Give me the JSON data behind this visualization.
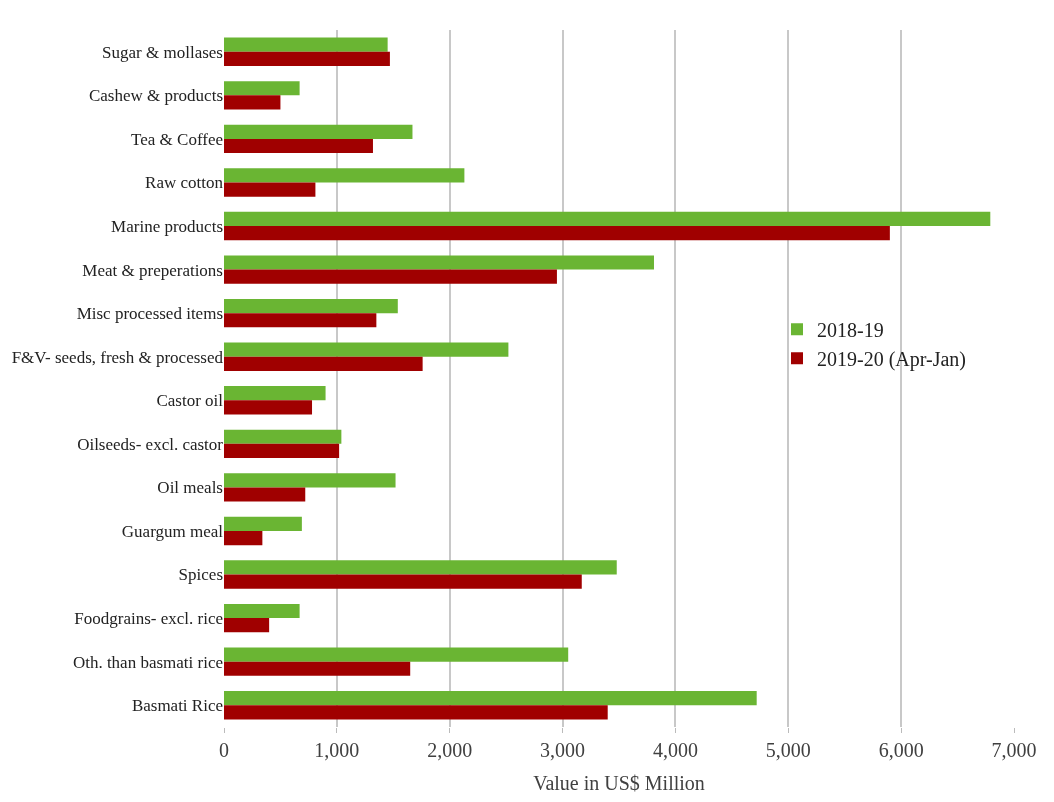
{
  "chart_data": {
    "type": "bar",
    "orientation": "horizontal",
    "xlabel": "Value in US$ Million",
    "categories": [
      "Sugar & mollases",
      "Cashew & products",
      "Tea & Coffee",
      "Raw cotton",
      "Marine products",
      "Meat & preperations",
      "Misc processed items",
      "F&V- seeds, fresh & processed",
      "Castor oil",
      "Oilseeds- excl. castor",
      "Oil meals",
      "Guargum meal",
      "Spices",
      "Foodgrains- excl. rice",
      "Oth. than basmati rice",
      "Basmati Rice"
    ],
    "series": [
      {
        "name": "2018-19",
        "color": "#6ab533",
        "values": [
          1450,
          670,
          1670,
          2130,
          6790,
          3810,
          1540,
          2520,
          900,
          1040,
          1520,
          690,
          3480,
          670,
          3050,
          4720
        ]
      },
      {
        "name": "2019-20 (Apr-Jan)",
        "color": "#a00000",
        "values": [
          1470,
          500,
          1320,
          810,
          5900,
          2950,
          1350,
          1760,
          780,
          1020,
          720,
          340,
          3170,
          400,
          1650,
          3400
        ]
      }
    ],
    "xlim": [
      0,
      7000
    ],
    "xticks": [
      {
        "value": 0,
        "label": "0"
      },
      {
        "value": 1000,
        "label": "1,000"
      },
      {
        "value": 2000,
        "label": "2,000"
      },
      {
        "value": 3000,
        "label": "3,000"
      },
      {
        "value": 4000,
        "label": "4,000"
      },
      {
        "value": 5000,
        "label": "5,000"
      },
      {
        "value": 6000,
        "label": "6,000"
      },
      {
        "value": 7000,
        "label": "7,000"
      }
    ],
    "grid": "x",
    "legend": "right"
  }
}
